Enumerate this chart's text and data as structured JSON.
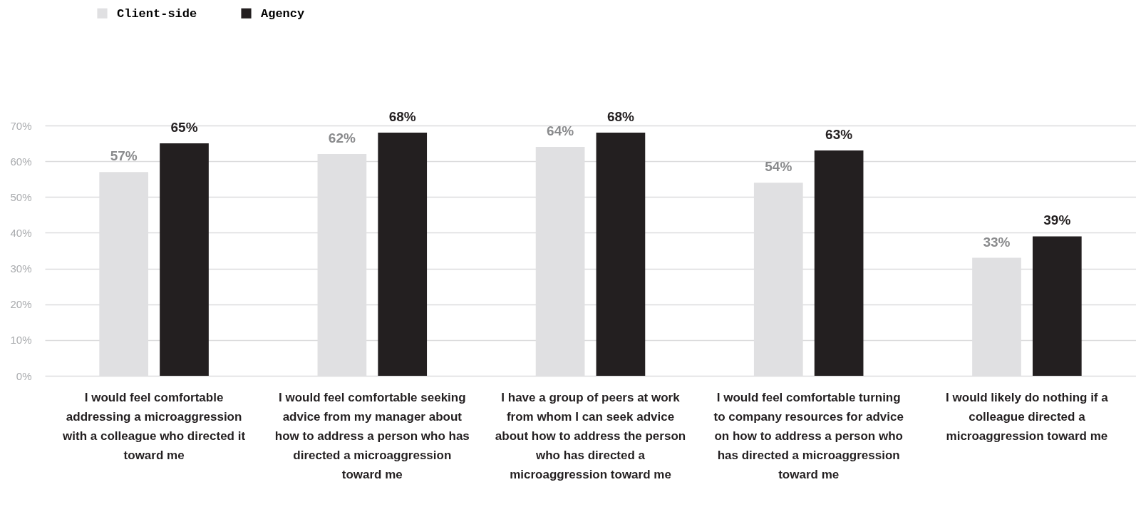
{
  "chart_data": {
    "type": "bar",
    "categories": [
      "I would feel comfortable addressing a microaggression with a colleague who directed it toward me",
      "I would feel comfortable seeking advice from my manager about how to address a person who has directed a microaggression toward me",
      "I have a group of peers at work from whom I can seek advice about how to address the person who has directed a microaggression toward me",
      "I would feel comfortable turning to company resources for advice on how to address a person who has directed a microaggression toward me",
      "I would likely do nothing if a colleague directed a microaggression toward me"
    ],
    "series": [
      {
        "name": "Client-side",
        "color": "#e0e0e2",
        "values": [
          57,
          62,
          64,
          54,
          33
        ],
        "value_labels": [
          "57%",
          "62%",
          "64%",
          "54%",
          "33%"
        ]
      },
      {
        "name": "Agency",
        "color": "#231f20",
        "values": [
          65,
          68,
          68,
          63,
          39
        ],
        "value_labels": [
          "65%",
          "68%",
          "68%",
          "63%",
          "39%"
        ]
      }
    ],
    "ylim": [
      0,
      70
    ],
    "yticks": [
      {
        "value": 0,
        "label": "0%"
      },
      {
        "value": 10,
        "label": "10%"
      },
      {
        "value": 20,
        "label": "20%"
      },
      {
        "value": 30,
        "label": "30%"
      },
      {
        "value": 40,
        "label": "40%"
      },
      {
        "value": 50,
        "label": "50%"
      },
      {
        "value": 60,
        "label": "60%"
      },
      {
        "value": 70,
        "label": "70%"
      }
    ],
    "grid": "y",
    "legend": "top left"
  }
}
